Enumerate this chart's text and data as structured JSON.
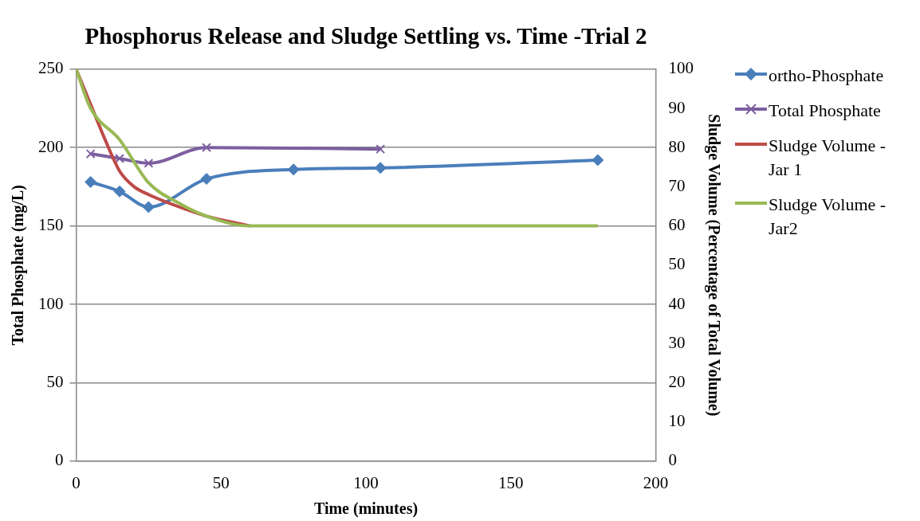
{
  "chart_data": {
    "type": "line",
    "title": "Phosphorus Release and Sludge Settling vs. Time -Trial 2",
    "xlabel": "Time (minutes)",
    "ylabel": "Total Phosphate (mg/L)",
    "y2label": "Sludge Volume (Percentage of Total Volume)",
    "xlim": [
      0,
      200
    ],
    "xticks": [
      0,
      50,
      100,
      150,
      200
    ],
    "ylim": [
      0,
      250
    ],
    "yticks": [
      0,
      50,
      100,
      150,
      200,
      250
    ],
    "y2lim": [
      0,
      100
    ],
    "y2ticks": [
      0,
      10,
      20,
      30,
      40,
      50,
      60,
      70,
      80,
      90,
      100
    ],
    "grid": "y",
    "legend": "right",
    "series": [
      {
        "name": "ortho-Phosphate",
        "color": "#4a7ebb",
        "marker": "diamond",
        "x": [
          5,
          15,
          25,
          45,
          75,
          105,
          180
        ],
        "values": [
          178,
          172,
          162,
          180,
          186,
          187,
          192
        ]
      },
      {
        "name": "Total Phosphate",
        "color": "#7d5fa0",
        "marker": "cross",
        "x": [
          5,
          15,
          25,
          45,
          105
        ],
        "values": [
          196,
          193,
          190,
          200,
          199
        ]
      },
      {
        "name": "Sludge Volume - Jar 1",
        "color": "#be4b48",
        "marker": "none",
        "axis": "y2",
        "x": [
          0,
          5,
          10,
          15,
          20,
          25,
          35,
          45,
          60
        ],
        "values": [
          100,
          91,
          82,
          74,
          70,
          68,
          65,
          62.5,
          60
        ]
      },
      {
        "name": "Sludge Volume - Jar2",
        "color": "#98b954",
        "marker": "none",
        "axis": "y2",
        "x": [
          0,
          5,
          15,
          25,
          35,
          45,
          60,
          75,
          105,
          180
        ],
        "values": [
          100,
          90,
          82,
          71,
          66,
          62.5,
          60,
          60,
          60,
          60
        ]
      }
    ]
  }
}
